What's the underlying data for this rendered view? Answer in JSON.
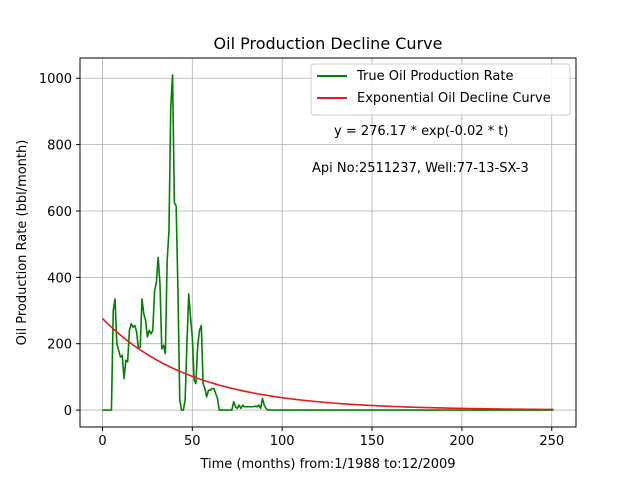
{
  "chart_data": {
    "type": "line",
    "title": "Oil Production Decline Curve",
    "xlabel": "Time (months) from:1/1988 to:12/2009",
    "ylabel": "Oil Production Rate (bbl/month)",
    "xlim": [
      -12.5,
      263.5
    ],
    "ylim": [
      -51,
      1061
    ],
    "xticks": [
      0,
      50,
      100,
      150,
      200,
      250
    ],
    "yticks": [
      0,
      200,
      400,
      600,
      800,
      1000
    ],
    "grid": true,
    "legend_position": "top-right",
    "annotations": [
      "y = 276.17 * exp(-0.02 * t)",
      "Api No:2511237, Well:77-13-SX-3"
    ],
    "series": [
      {
        "name": "True Oil Production Rate",
        "color": "#008000",
        "x": [
          0,
          1,
          2,
          3,
          4,
          5,
          6,
          7,
          8,
          9,
          10,
          11,
          12,
          13,
          14,
          15,
          16,
          17,
          18,
          19,
          20,
          21,
          22,
          23,
          24,
          25,
          26,
          27,
          28,
          29,
          30,
          31,
          32,
          33,
          34,
          35,
          36,
          37,
          38,
          39,
          40,
          41,
          42,
          43,
          44,
          45,
          46,
          47,
          48,
          49,
          50,
          51,
          52,
          53,
          54,
          55,
          56,
          57,
          58,
          59,
          60,
          61,
          62,
          63,
          64,
          65,
          66,
          67,
          68,
          69,
          70,
          71,
          72,
          73,
          74,
          75,
          76,
          77,
          78,
          79,
          80,
          81,
          82,
          83,
          84,
          85,
          86,
          87,
          88,
          89,
          90,
          91,
          92,
          95,
          100,
          150,
          200,
          251
        ],
        "values": [
          0,
          0,
          0,
          0,
          0,
          0,
          300,
          335,
          200,
          180,
          160,
          165,
          95,
          150,
          145,
          240,
          260,
          250,
          255,
          235,
          185,
          190,
          335,
          290,
          270,
          220,
          240,
          230,
          240,
          360,
          385,
          460,
          380,
          185,
          195,
          170,
          450,
          540,
          910,
          1010,
          625,
          615,
          360,
          30,
          0,
          0,
          30,
          200,
          350,
          280,
          220,
          90,
          80,
          195,
          240,
          255,
          80,
          65,
          40,
          60,
          60,
          65,
          65,
          50,
          35,
          0,
          0,
          0,
          0,
          0,
          0,
          0,
          0,
          25,
          10,
          5,
          15,
          5,
          15,
          10,
          10,
          10,
          10,
          10,
          10,
          12,
          10,
          15,
          5,
          35,
          15,
          5,
          0,
          0,
          0,
          0,
          0,
          0
        ]
      },
      {
        "name": "Exponential Oil Decline Curve",
        "color": "#e41a1c",
        "a": 276.17,
        "b": -0.02,
        "x_range": [
          0,
          251
        ]
      }
    ]
  }
}
